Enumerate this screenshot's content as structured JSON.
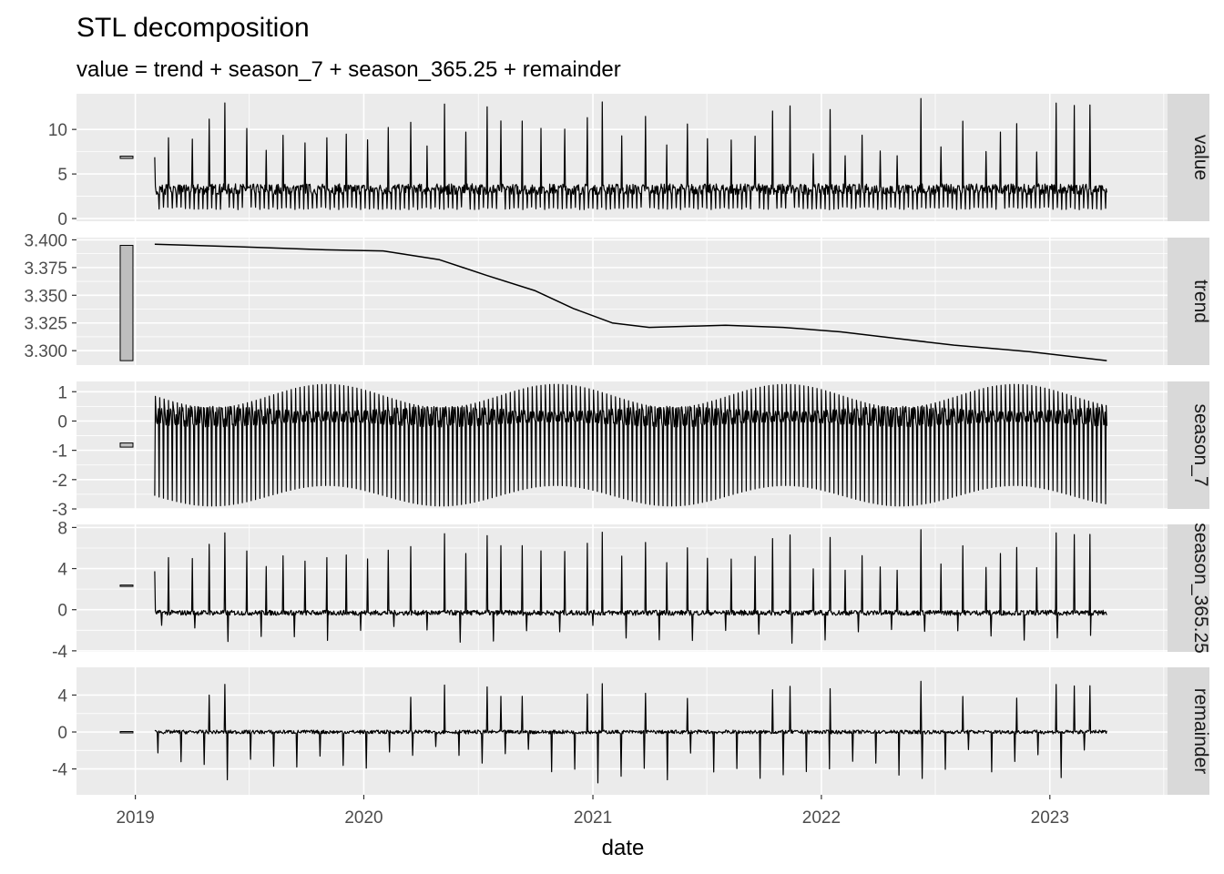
{
  "chart_data": {
    "type": "line",
    "title": "STL decomposition",
    "subtitle": "value = trend + season_7 + season_365.25 + remainder",
    "xlabel": "date",
    "x_ticks": [
      "2019",
      "2020",
      "2021",
      "2022",
      "2023"
    ],
    "x_range": [
      "2018-09-29",
      "2023-07-08"
    ],
    "series_start": "2019-02-01",
    "series_end": "2023-04-02",
    "grid": true,
    "colors": {
      "panel_background": "#ebebeb",
      "strip_background": "#d9d9d9",
      "line": "#000000",
      "grid": "#ffffff",
      "scale_bar_fill": "#bebebe"
    },
    "panels": [
      {
        "name": "value",
        "ylim": [
          -0.3,
          14
        ],
        "y_ticks": [
          "0",
          "5",
          "10"
        ],
        "y_tick_values": [
          0,
          5,
          10
        ],
        "scale_bar": [
          6.75,
          7.0
        ],
        "baseline": 3.3,
        "spike_low": 1.0,
        "spike_high_range": [
          6.5,
          13.5
        ]
      },
      {
        "name": "trend",
        "ylim": [
          3.287,
          3.402
        ],
        "y_ticks": [
          "3.300",
          "3.325",
          "3.350",
          "3.375",
          "3.400"
        ],
        "y_tick_values": [
          3.3,
          3.325,
          3.35,
          3.375,
          3.4
        ],
        "scale_bar": [
          3.291,
          3.395
        ],
        "trend_points": [
          [
            "2019-02-01",
            3.396
          ],
          [
            "2019-06-01",
            3.394
          ],
          [
            "2019-11-01",
            3.391
          ],
          [
            "2020-02-01",
            3.39
          ],
          [
            "2020-05-01",
            3.382
          ],
          [
            "2020-07-15",
            3.368
          ],
          [
            "2020-10-01",
            3.354
          ],
          [
            "2020-12-01",
            3.338
          ],
          [
            "2021-02-01",
            3.325
          ],
          [
            "2021-04-01",
            3.321
          ],
          [
            "2021-08-01",
            3.323
          ],
          [
            "2021-11-01",
            3.321
          ],
          [
            "2022-02-01",
            3.317
          ],
          [
            "2022-05-01",
            3.311
          ],
          [
            "2022-08-01",
            3.305
          ],
          [
            "2022-12-01",
            3.299
          ],
          [
            "2023-04-02",
            3.291
          ]
        ]
      },
      {
        "name": "season_7",
        "ylim": [
          -3.0,
          1.35
        ],
        "y_ticks": [
          "-3",
          "-2",
          "-1",
          "0",
          "1"
        ],
        "y_tick_values": [
          -3,
          -2,
          -1,
          0,
          1
        ],
        "scale_bar": [
          -0.89,
          -0.75
        ],
        "amplitude_high": [
          0.45,
          1.25
        ],
        "amplitude_low": [
          -2.2,
          -2.9
        ]
      },
      {
        "name": "season_365.25",
        "ylim": [
          -4.1,
          8.3
        ],
        "y_ticks": [
          "-4",
          "0",
          "4",
          "8"
        ],
        "y_tick_values": [
          -4,
          0,
          4,
          8
        ],
        "scale_bar": [
          2.3,
          2.4
        ],
        "baseline": -0.3
      },
      {
        "name": "remainder",
        "ylim": [
          -6.8,
          7.0
        ],
        "y_ticks": [
          "-4",
          "0",
          "4"
        ],
        "y_tick_values": [
          -4,
          0,
          4
        ],
        "scale_bar": [
          -0.05,
          0.05
        ],
        "baseline": 0
      }
    ]
  }
}
